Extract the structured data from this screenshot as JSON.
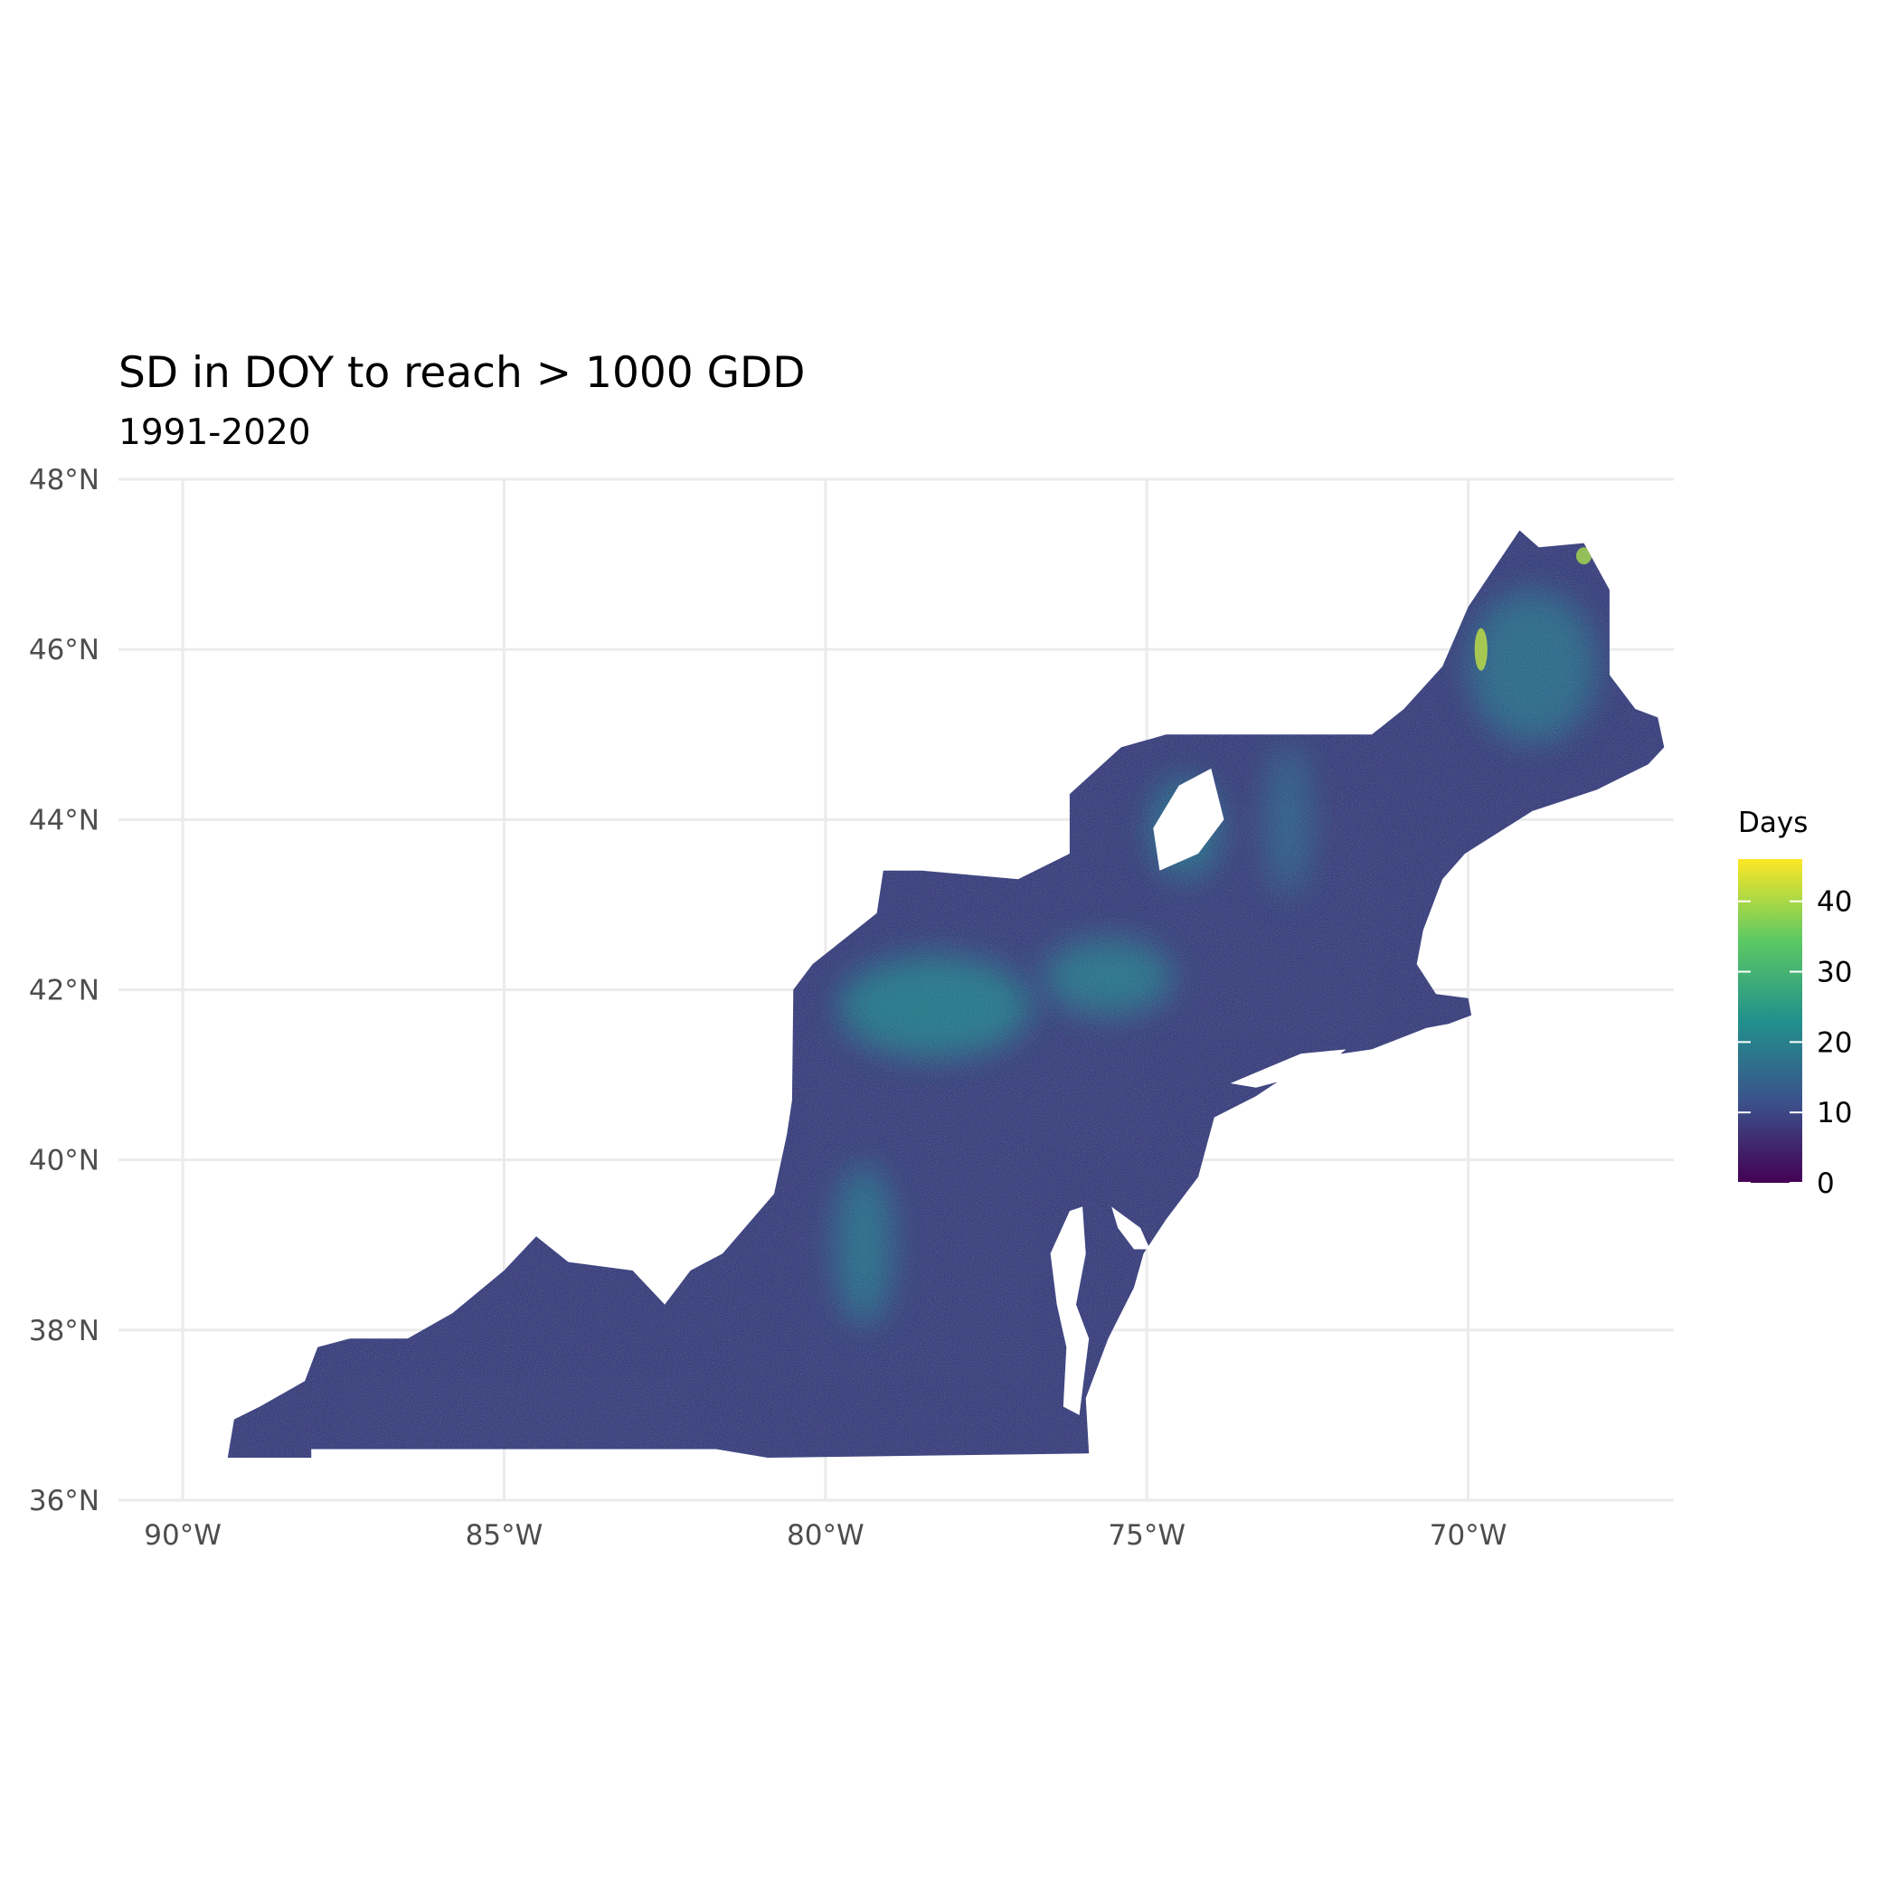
{
  "chart_data": {
    "type": "heatmap",
    "title": "SD in DOY to reach > 1000 GDD",
    "subtitle": "1991-2020",
    "xlabel": "",
    "ylabel": "",
    "xlim": [
      -91,
      -66.8
    ],
    "ylim": [
      36,
      48
    ],
    "x_ticks": [
      -90,
      -85,
      -80,
      -75,
      -70
    ],
    "x_tick_labels": [
      "90°W",
      "85°W",
      "80°W",
      "75°W",
      "70°W"
    ],
    "y_ticks": [
      36,
      38,
      40,
      42,
      44,
      46,
      48
    ],
    "y_tick_labels": [
      "36°N",
      "38°N",
      "40°N",
      "42°N",
      "44°N",
      "46°N",
      "48°N"
    ],
    "grid": true,
    "legend": {
      "title": "Days",
      "position": "right",
      "range": [
        0,
        46
      ],
      "breaks": [
        0,
        10,
        20,
        30,
        40
      ],
      "break_labels": [
        "0",
        "10",
        "20",
        "30",
        "40"
      ],
      "palette": [
        "#440154",
        "#3b528b",
        "#21908c",
        "#5dc963",
        "#fde725"
      ]
    },
    "region": {
      "outline": [
        [
          -89.3,
          36.5
        ],
        [
          -88.0,
          36.5
        ],
        [
          -88.0,
          36.6
        ],
        [
          -81.7,
          36.6
        ],
        [
          -80.9,
          36.5
        ],
        [
          -75.9,
          36.55
        ],
        [
          -75.95,
          37.2
        ],
        [
          -75.6,
          37.9
        ],
        [
          -75.2,
          38.5
        ],
        [
          -75.05,
          38.9
        ],
        [
          -74.7,
          39.3
        ],
        [
          -74.2,
          39.8
        ],
        [
          -73.95,
          40.5
        ],
        [
          -73.3,
          40.75
        ],
        [
          -72.4,
          41.2
        ],
        [
          -71.5,
          41.3
        ],
        [
          -70.65,
          41.55
        ],
        [
          -70.3,
          41.6
        ],
        [
          -69.95,
          41.7
        ],
        [
          -70.0,
          41.9
        ],
        [
          -70.5,
          41.95
        ],
        [
          -70.8,
          42.3
        ],
        [
          -70.7,
          42.7
        ],
        [
          -70.4,
          43.3
        ],
        [
          -70.05,
          43.6
        ],
        [
          -69.0,
          44.1
        ],
        [
          -68.0,
          44.35
        ],
        [
          -67.2,
          44.65
        ],
        [
          -66.95,
          44.85
        ],
        [
          -67.05,
          45.2
        ],
        [
          -67.4,
          45.3
        ],
        [
          -67.8,
          45.7
        ],
        [
          -67.8,
          46.7
        ],
        [
          -68.2,
          47.25
        ],
        [
          -68.9,
          47.2
        ],
        [
          -69.2,
          47.4
        ],
        [
          -70.0,
          46.5
        ],
        [
          -70.4,
          45.8
        ],
        [
          -71.0,
          45.3
        ],
        [
          -71.5,
          45.0
        ],
        [
          -74.7,
          45.0
        ],
        [
          -75.4,
          44.85
        ],
        [
          -76.2,
          44.3
        ],
        [
          -76.2,
          43.6
        ],
        [
          -77.0,
          43.3
        ],
        [
          -78.5,
          43.4
        ],
        [
          -79.1,
          43.4
        ],
        [
          -79.2,
          42.9
        ],
        [
          -80.2,
          42.3
        ],
        [
          -80.5,
          42.0
        ],
        [
          -80.52,
          40.7
        ],
        [
          -80.6,
          40.3
        ],
        [
          -80.8,
          39.6
        ],
        [
          -81.6,
          38.9
        ],
        [
          -82.1,
          38.7
        ],
        [
          -82.5,
          38.3
        ],
        [
          -83.0,
          38.7
        ],
        [
          -84.0,
          38.8
        ],
        [
          -84.5,
          39.1
        ],
        [
          -85.0,
          38.7
        ],
        [
          -85.8,
          38.2
        ],
        [
          -86.5,
          37.9
        ],
        [
          -87.4,
          37.9
        ],
        [
          -87.9,
          37.8
        ],
        [
          -88.1,
          37.4
        ],
        [
          -88.8,
          37.1
        ],
        [
          -89.2,
          36.95
        ],
        [
          -89.3,
          36.5
        ]
      ],
      "water": [
        {
          "name": "Chesapeake Bay",
          "outline": [
            [
              -76.05,
              37.0
            ],
            [
              -76.3,
              37.1
            ],
            [
              -76.25,
              37.8
            ],
            [
              -76.4,
              38.3
            ],
            [
              -76.5,
              38.9
            ],
            [
              -76.2,
              39.4
            ],
            [
              -76.0,
              39.45
            ],
            [
              -75.95,
              38.9
            ],
            [
              -76.1,
              38.3
            ],
            [
              -75.9,
              37.9
            ]
          ]
        },
        {
          "name": "Delaware Bay",
          "outline": [
            [
              -75.55,
              39.45
            ],
            [
              -75.1,
              39.2
            ],
            [
              -74.95,
              38.95
            ],
            [
              -75.2,
              38.95
            ],
            [
              -75.45,
              39.2
            ]
          ]
        },
        {
          "name": "Long Island Sound",
          "outline": [
            [
              -73.7,
              40.9
            ],
            [
              -72.6,
              41.25
            ],
            [
              -71.9,
              41.3
            ],
            [
              -72.3,
              41.05
            ],
            [
              -73.3,
              40.85
            ]
          ]
        },
        {
          "name": "Adirondack gaps",
          "outline": [
            [
              -74.8,
              43.4
            ],
            [
              -74.2,
              43.6
            ],
            [
              -73.8,
              44.0
            ],
            [
              -74.0,
              44.6
            ],
            [
              -74.5,
              44.4
            ],
            [
              -74.9,
              43.9
            ]
          ]
        }
      ],
      "high_sd_zones": [
        {
          "name": "Allegheny Plateau",
          "center": [
            -78.3,
            41.8
          ],
          "radius": [
            1.5,
            0.6
          ],
          "value": 20
        },
        {
          "name": "Catskills / Finger Lakes",
          "center": [
            -75.6,
            42.15
          ],
          "radius": [
            1.0,
            0.45
          ],
          "value": 19
        },
        {
          "name": "Ridge and Valley",
          "center": [
            -79.4,
            39.0
          ],
          "radius": [
            0.45,
            0.95
          ],
          "value": 18
        },
        {
          "name": "Adirondacks",
          "center": [
            -74.4,
            43.9
          ],
          "radius": [
            0.55,
            0.6
          ],
          "value": 18
        },
        {
          "name": "Green Mountains",
          "center": [
            -72.8,
            44.0
          ],
          "radius": [
            0.35,
            0.9
          ],
          "value": 15
        },
        {
          "name": "Maine Highlands",
          "center": [
            -69.0,
            45.8
          ],
          "radius": [
            1.0,
            0.9
          ],
          "value": 17
        },
        {
          "name": "Northern Maine coast strip",
          "center": [
            -69.8,
            46.0
          ],
          "radius": [
            0.1,
            0.25
          ],
          "value": 42
        },
        {
          "name": "Aroostook",
          "center": [
            -68.2,
            47.1
          ],
          "radius": [
            0.12,
            0.1
          ],
          "value": 40
        }
      ],
      "background_value": 8
    }
  }
}
